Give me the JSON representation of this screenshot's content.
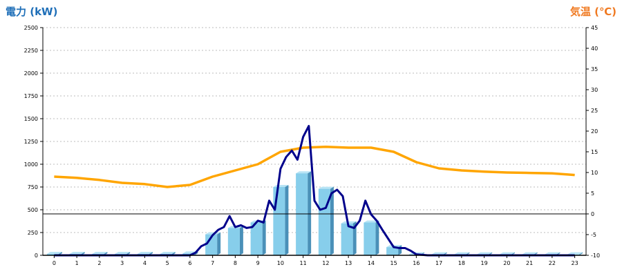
{
  "chart_data": {
    "type": "bar",
    "title": "",
    "left_axis": {
      "label": "電力 (kW)",
      "range": [
        0,
        2500
      ],
      "ticks": [
        "0",
        "250",
        "500",
        "750",
        "1000",
        "1250",
        "1500",
        "1750",
        "2000",
        "2250",
        "2500"
      ]
    },
    "right_axis": {
      "label": "気温 (℃)",
      "range": [
        -10,
        45
      ],
      "ticks": [
        "-10",
        "-5",
        "0",
        "5",
        "10",
        "15",
        "20",
        "25",
        "30",
        "35",
        "40",
        "45"
      ]
    },
    "categories": [
      "0",
      "1",
      "2",
      "3",
      "4",
      "5",
      "6",
      "7",
      "8",
      "9",
      "10",
      "11",
      "12",
      "13",
      "14",
      "15",
      "16",
      "17",
      "18",
      "19",
      "20",
      "21",
      "22",
      "23"
    ],
    "grid": true,
    "colors": {
      "bar": "#87ceeb",
      "bar_side": "#4a90b8",
      "bar_top": "#b8e4f5",
      "power_line": "#00008b",
      "temp_line": "#ffa500",
      "left_title": "#1f6fb8",
      "right_title": "#f07a22"
    },
    "series": [
      {
        "role": "hourly-energy-bars",
        "axis": "left",
        "values": [
          15,
          15,
          15,
          15,
          15,
          15,
          20,
          230,
          300,
          360,
          750,
          900,
          730,
          350,
          360,
          90,
          10,
          10,
          10,
          10,
          10,
          10,
          10,
          10
        ]
      },
      {
        "role": "power-line",
        "axis": "left",
        "x": [
          0,
          1,
          2,
          3,
          4,
          5,
          5.5,
          6,
          6.25,
          6.5,
          6.75,
          7,
          7.25,
          7.5,
          7.75,
          8,
          8.25,
          8.5,
          8.75,
          9,
          9.25,
          9.5,
          9.75,
          10,
          10.25,
          10.5,
          10.75,
          11,
          11.25,
          11.5,
          11.75,
          12,
          12.25,
          12.5,
          12.75,
          13,
          13.25,
          13.5,
          13.75,
          14,
          14.25,
          14.5,
          15,
          15.25,
          15.5,
          15.75,
          16,
          16.5,
          17,
          18,
          19,
          20,
          21,
          22,
          23
        ],
        "values": [
          0,
          0,
          0,
          0,
          0,
          0,
          0,
          0,
          30,
          100,
          130,
          220,
          280,
          310,
          430,
          310,
          330,
          300,
          310,
          380,
          360,
          600,
          500,
          950,
          1080,
          1150,
          1050,
          1300,
          1420,
          600,
          500,
          520,
          680,
          720,
          650,
          320,
          300,
          380,
          600,
          450,
          380,
          280,
          90,
          80,
          80,
          50,
          10,
          0,
          0,
          0,
          0,
          0,
          0,
          0,
          0
        ]
      },
      {
        "role": "temperature-line",
        "axis": "right",
        "x": [
          0,
          1,
          2,
          3,
          4,
          5,
          6,
          7,
          8,
          9,
          10,
          11,
          12,
          13,
          14,
          15,
          16,
          17,
          18,
          19,
          20,
          21,
          22,
          23
        ],
        "values": [
          9,
          8.7,
          8.2,
          7.5,
          7.2,
          6.5,
          7,
          9,
          10.5,
          12,
          15,
          16,
          16.2,
          16,
          16,
          15,
          12.5,
          11,
          10.5,
          10.2,
          10,
          9.9,
          9.8,
          9.4
        ]
      }
    ],
    "reference_line": {
      "axis": "right",
      "value": 0
    }
  }
}
